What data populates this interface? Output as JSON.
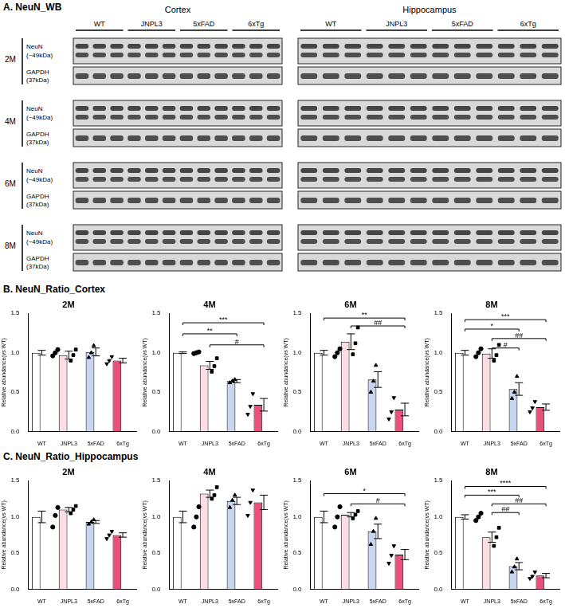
{
  "blot": {
    "title": "A. NeuN_WB",
    "regions": [
      "Cortex",
      "Hippocampus"
    ],
    "groups": [
      "WT",
      "JNPL3",
      "5xFAD",
      "6xTg"
    ],
    "timepoints": [
      "2M",
      "4M",
      "6M",
      "8M"
    ],
    "bands": [
      {
        "name": "NeuN",
        "size": "(~49kDa)"
      },
      {
        "name": "GAPDH",
        "size": "(37kDa)"
      }
    ]
  },
  "panels": [
    {
      "title": "B. NeuN_Ratio_Cortex"
    },
    {
      "title": "C. NeuN_Ratio_Hippocampus"
    }
  ],
  "chart_data": [
    {
      "type": "bar",
      "title": "2M",
      "y_label": "Relative abundance(vs WT)",
      "categories": [
        "WT",
        "JNPL3",
        "5xFAD",
        "6xTg"
      ],
      "values": [
        1.0,
        0.97,
        1.01,
        0.9
      ],
      "errors": [
        0.03,
        0.05,
        0.05,
        0.03
      ],
      "points": [
        [
          0.96,
          1.0,
          1.04
        ],
        [
          0.9,
          0.97,
          1.04
        ],
        [
          0.94,
          1.0,
          1.09
        ],
        [
          0.86,
          0.9,
          0.95
        ]
      ],
      "colors": [
        "#ffffff",
        "#fbdde3",
        "#c6d6ee",
        "#e9517c"
      ],
      "markers": [
        "circle",
        "square",
        "triangle",
        "triangle-down"
      ],
      "ylim": [
        0,
        1.5
      ],
      "yticks": [
        {
          "value": 0,
          "label": "0.0"
        },
        {
          "value": 0.5,
          "label": "0.5"
        },
        {
          "value": 1.0,
          "label": "1.0"
        },
        {
          "value": 1.5,
          "label": "1.5"
        }
      ],
      "grid": false,
      "significance": []
    },
    {
      "type": "bar",
      "title": "4M",
      "y_label": "Relative abundance(vs WT)",
      "categories": [
        "WT",
        "JNPL3",
        "5xFAD",
        "6xTg"
      ],
      "values": [
        1.0,
        0.84,
        0.64,
        0.34
      ],
      "errors": [
        0.01,
        0.05,
        0.02,
        0.08
      ],
      "points": [
        [
          0.99,
          1.0,
          1.01
        ],
        [
          0.76,
          0.83,
          0.93
        ],
        [
          0.62,
          0.64,
          0.66
        ],
        [
          0.22,
          0.32,
          0.48
        ]
      ],
      "colors": [
        "#ffffff",
        "#fbdde3",
        "#c6d6ee",
        "#e9517c"
      ],
      "markers": [
        "circle",
        "square",
        "triangle",
        "triangle-down"
      ],
      "ylim": [
        0,
        1.5
      ],
      "yticks": [
        {
          "value": 0,
          "label": "0.0"
        },
        {
          "value": 0.5,
          "label": "0.5"
        },
        {
          "value": 1.0,
          "label": "1.0"
        },
        {
          "value": 1.5,
          "label": "1.5"
        }
      ],
      "grid": false,
      "significance": [
        {
          "from": "WT",
          "to": "6xTg",
          "label": "***",
          "y": 1.38
        },
        {
          "from": "WT",
          "to": "5xFAD",
          "label": "**",
          "y": 1.24
        },
        {
          "from": "JNPL3",
          "to": "6xTg",
          "label": "#",
          "y": 1.1
        }
      ]
    },
    {
      "type": "bar",
      "title": "6M",
      "y_label": "Relative abundance(vs WT)",
      "categories": [
        "WT",
        "JNPL3",
        "5xFAD",
        "6xTg"
      ],
      "values": [
        1.0,
        1.14,
        0.66,
        0.28
      ],
      "errors": [
        0.03,
        0.1,
        0.1,
        0.08
      ],
      "points": [
        [
          0.95,
          1.0,
          1.05
        ],
        [
          0.98,
          1.12,
          1.32
        ],
        [
          0.5,
          0.64,
          0.84
        ],
        [
          0.16,
          0.25,
          0.43
        ]
      ],
      "colors": [
        "#ffffff",
        "#fbdde3",
        "#c6d6ee",
        "#e9517c"
      ],
      "markers": [
        "circle",
        "square",
        "triangle",
        "triangle-down"
      ],
      "ylim": [
        0,
        1.5
      ],
      "yticks": [
        {
          "value": 0,
          "label": "0.0"
        },
        {
          "value": 0.5,
          "label": "0.5"
        },
        {
          "value": 1.0,
          "label": "1.0"
        },
        {
          "value": 1.5,
          "label": "1.5"
        }
      ],
      "grid": false,
      "significance": [
        {
          "from": "WT",
          "to": "6xTg",
          "label": "**",
          "y": 1.44
        },
        {
          "from": "JNPL3",
          "to": "6xTg",
          "label": "##",
          "y": 1.34
        }
      ]
    },
    {
      "type": "bar",
      "title": "8M",
      "y_label": "Relative abundance(vs WT)",
      "categories": [
        "WT",
        "JNPL3",
        "5xFAD",
        "6xTg"
      ],
      "values": [
        1.0,
        0.99,
        0.54,
        0.31
      ],
      "errors": [
        0.03,
        0.06,
        0.08,
        0.04
      ],
      "points": [
        [
          0.95,
          1.0,
          1.05
        ],
        [
          0.9,
          0.97,
          1.1
        ],
        [
          0.42,
          0.5,
          0.7
        ],
        [
          0.25,
          0.3,
          0.38
        ]
      ],
      "colors": [
        "#ffffff",
        "#fbdde3",
        "#c6d6ee",
        "#e9517c"
      ],
      "markers": [
        "circle",
        "square",
        "triangle",
        "triangle-down"
      ],
      "ylim": [
        0,
        1.5
      ],
      "yticks": [
        {
          "value": 0,
          "label": "0.0"
        },
        {
          "value": 0.5,
          "label": "0.5"
        },
        {
          "value": 1.0,
          "label": "1.0"
        },
        {
          "value": 1.5,
          "label": "1.5"
        }
      ],
      "grid": false,
      "significance": [
        {
          "from": "WT",
          "to": "6xTg",
          "label": "***",
          "y": 1.42
        },
        {
          "from": "WT",
          "to": "5xFAD",
          "label": "*",
          "y": 1.3
        },
        {
          "from": "JNPL3",
          "to": "6xTg",
          "label": "##",
          "y": 1.18
        },
        {
          "from": "JNPL3",
          "to": "5xFAD",
          "label": "#",
          "y": 1.06
        }
      ]
    },
    {
      "type": "bar",
      "title": "2M",
      "y_label": "Relative abundance(vs WT)",
      "categories": [
        "WT",
        "JNPL3",
        "5xFAD",
        "6xTg"
      ],
      "values": [
        1.0,
        1.1,
        0.93,
        0.75
      ],
      "errors": [
        0.08,
        0.03,
        0.02,
        0.03
      ],
      "points": [
        [
          0.86,
          1.02,
          1.13
        ],
        [
          1.05,
          1.1,
          1.15
        ],
        [
          0.9,
          0.93,
          0.96
        ],
        [
          0.7,
          0.75,
          0.8
        ]
      ],
      "colors": [
        "#ffffff",
        "#fbdde3",
        "#c6d6ee",
        "#e9517c"
      ],
      "markers": [
        "circle",
        "square",
        "triangle",
        "triangle-down"
      ],
      "ylim": [
        0,
        1.5
      ],
      "yticks": [
        {
          "value": 0,
          "label": "0.0"
        },
        {
          "value": 0.5,
          "label": "0.5"
        },
        {
          "value": 1.0,
          "label": "1.0"
        },
        {
          "value": 1.5,
          "label": "1.5"
        }
      ],
      "grid": false,
      "significance": []
    },
    {
      "type": "bar",
      "title": "4M",
      "y_label": "Relative abundance(vs WT)",
      "categories": [
        "WT",
        "JNPL3",
        "5xFAD",
        "6xTg"
      ],
      "values": [
        1.0,
        1.32,
        1.22,
        1.2
      ],
      "errors": [
        0.08,
        0.05,
        0.05,
        0.1
      ],
      "points": [
        [
          0.86,
          1.0,
          1.14
        ],
        [
          1.25,
          1.3,
          1.41
        ],
        [
          1.13,
          1.23,
          1.3
        ],
        [
          1.02,
          1.2,
          1.37
        ]
      ],
      "colors": [
        "#ffffff",
        "#fbdde3",
        "#c6d6ee",
        "#e9517c"
      ],
      "markers": [
        "circle",
        "square",
        "triangle",
        "triangle-down"
      ],
      "ylim": [
        0,
        1.5
      ],
      "yticks": [
        {
          "value": 0,
          "label": "0.0"
        },
        {
          "value": 0.5,
          "label": "0.5"
        },
        {
          "value": 1.0,
          "label": "1.0"
        },
        {
          "value": 1.5,
          "label": "1.5"
        }
      ],
      "grid": false,
      "significance": []
    },
    {
      "type": "bar",
      "title": "6M",
      "y_label": "Relative abundance(vs WT)",
      "categories": [
        "WT",
        "JNPL3",
        "5xFAD",
        "6xTg"
      ],
      "values": [
        1.0,
        1.03,
        0.8,
        0.48
      ],
      "errors": [
        0.08,
        0.03,
        0.1,
        0.07
      ],
      "points": [
        [
          0.86,
          1.0,
          1.14
        ],
        [
          0.98,
          1.03,
          1.08
        ],
        [
          0.62,
          0.8,
          0.98
        ],
        [
          0.36,
          0.47,
          0.6
        ]
      ],
      "colors": [
        "#ffffff",
        "#fbdde3",
        "#c6d6ee",
        "#e9517c"
      ],
      "markers": [
        "circle",
        "square",
        "triangle",
        "triangle-down"
      ],
      "ylim": [
        0,
        1.5
      ],
      "yticks": [
        {
          "value": 0,
          "label": "0.0"
        },
        {
          "value": 0.5,
          "label": "0.5"
        },
        {
          "value": 1.0,
          "label": "1.0"
        },
        {
          "value": 1.5,
          "label": "1.5"
        }
      ],
      "grid": false,
      "significance": [
        {
          "from": "WT",
          "to": "6xTg",
          "label": "*",
          "y": 1.32
        },
        {
          "from": "JNPL3",
          "to": "6xTg",
          "label": "#",
          "y": 1.18
        }
      ]
    },
    {
      "type": "bar",
      "title": "8M",
      "y_label": "Relative abundance(vs WT)",
      "categories": [
        "WT",
        "JNPL3",
        "5xFAD",
        "6xTg"
      ],
      "values": [
        1.0,
        0.72,
        0.32,
        0.19
      ],
      "errors": [
        0.03,
        0.07,
        0.05,
        0.03
      ],
      "points": [
        [
          0.95,
          1.0,
          1.05
        ],
        [
          0.6,
          0.72,
          0.85
        ],
        [
          0.24,
          0.31,
          0.42
        ],
        [
          0.15,
          0.18,
          0.24
        ]
      ],
      "colors": [
        "#ffffff",
        "#fbdde3",
        "#c6d6ee",
        "#e9517c"
      ],
      "markers": [
        "circle",
        "square",
        "triangle",
        "triangle-down"
      ],
      "ylim": [
        0,
        1.5
      ],
      "yticks": [
        {
          "value": 0,
          "label": "0.0"
        },
        {
          "value": 0.5,
          "label": "0.5"
        },
        {
          "value": 1.0,
          "label": "1.0"
        },
        {
          "value": 1.5,
          "label": "1.5"
        }
      ],
      "grid": false,
      "significance": [
        {
          "from": "WT",
          "to": "6xTg",
          "label": "****",
          "y": 1.42
        },
        {
          "from": "WT",
          "to": "5xFAD",
          "label": "***",
          "y": 1.3
        },
        {
          "from": "JNPL3",
          "to": "6xTg",
          "label": "##",
          "y": 1.18
        },
        {
          "from": "JNPL3",
          "to": "5xFAD",
          "label": "##",
          "y": 1.06
        }
      ]
    }
  ]
}
